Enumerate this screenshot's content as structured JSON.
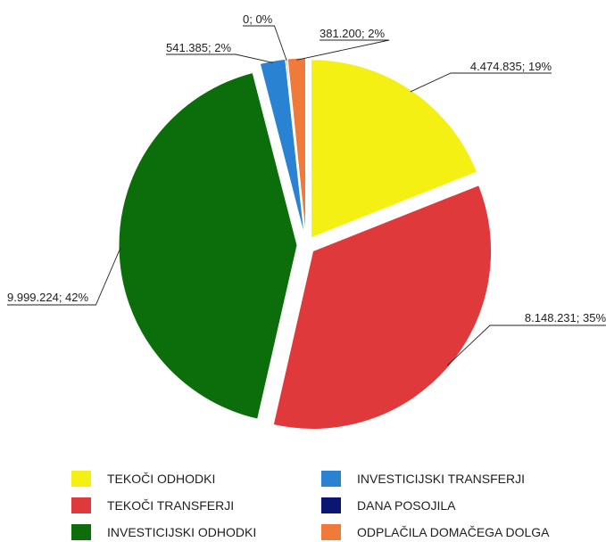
{
  "chart_data": {
    "type": "pie",
    "title": "",
    "slices": [
      {
        "name": "TEKOČI ODHODKI",
        "value": 4474835,
        "label": "4.474.835; 19%",
        "color": "#f5f014"
      },
      {
        "name": "TEKOČI TRANSFERJI",
        "value": 8148231,
        "label": "8.148.231; 35%",
        "color": "#e0393b"
      },
      {
        "name": "INVESTICIJSKI ODHODKI",
        "value": 9999224,
        "label": "9.999.224; 42%",
        "color": "#0b6e0b"
      },
      {
        "name": "INVESTICIJSKI TRANSFERJI",
        "value": 541385,
        "label": "541.385; 2%",
        "color": "#2a82d2"
      },
      {
        "name": "DANA POSOJILA",
        "value": 0,
        "label": "0; 0%",
        "color": "#0a1670"
      },
      {
        "name": "ODPLAČILA DOMAČEGA DOLGA",
        "value": 381200,
        "label": "381.200; 2%",
        "color": "#ef7a3a"
      }
    ],
    "legend_position": "bottom",
    "exploded": true
  }
}
